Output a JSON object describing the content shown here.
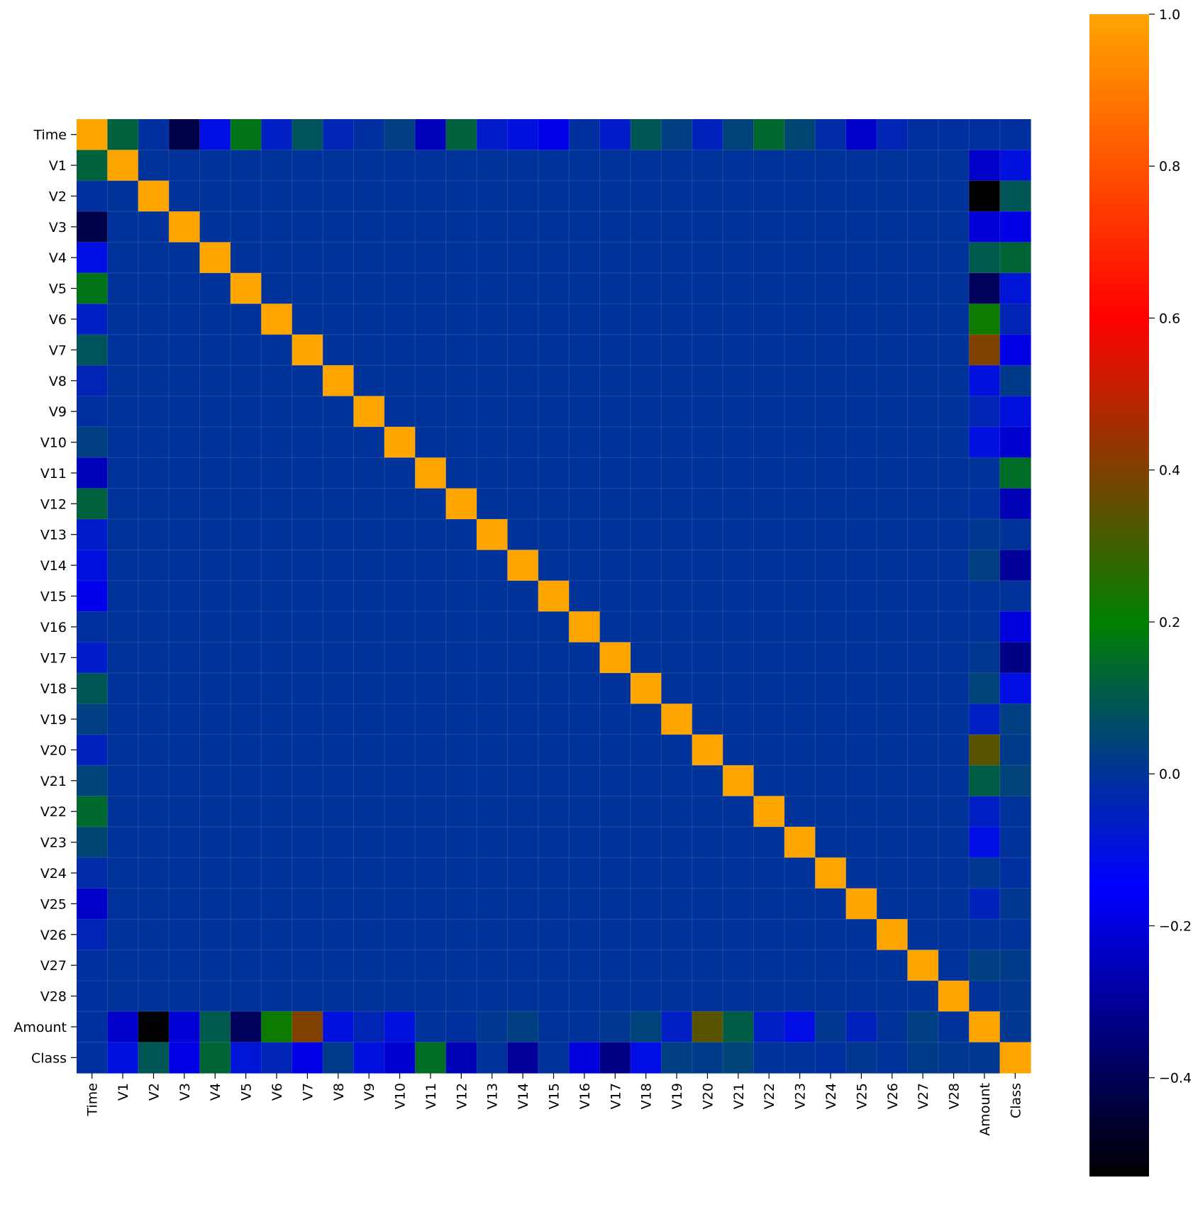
{
  "chart_data": {
    "type": "heatmap",
    "title": "",
    "xlabel": "",
    "ylabel": "",
    "labels": [
      "Time",
      "V1",
      "V2",
      "V3",
      "V4",
      "V5",
      "V6",
      "V7",
      "V8",
      "V9",
      "V10",
      "V11",
      "V12",
      "V13",
      "V14",
      "V15",
      "V16",
      "V17",
      "V18",
      "V19",
      "V20",
      "V21",
      "V22",
      "V23",
      "V24",
      "V25",
      "V26",
      "V27",
      "V28",
      "Amount",
      "Class"
    ],
    "colorbar": {
      "range": [
        -0.53,
        1.0
      ],
      "tick_values": [
        1.0,
        0.8,
        0.6,
        0.4,
        0.2,
        0.0,
        -0.2,
        -0.4
      ],
      "tick_labels": [
        "1.0",
        "0.8",
        "0.6",
        "0.4",
        "0.2",
        "0.0",
        "−0.2",
        "−0.4"
      ],
      "colors": [
        "#000000",
        "#000099",
        "#0000ff",
        "#003399",
        "#008000",
        "#ff0000",
        "#ffa500"
      ],
      "color_stops": [
        -0.53,
        -0.3,
        -0.15,
        0.0,
        0.2,
        0.6,
        1.0
      ]
    },
    "matrix": [
      [
        1.0,
        0.12,
        -0.01,
        -0.42,
        -0.11,
        0.17,
        -0.06,
        0.08,
        -0.04,
        -0.01,
        0.03,
        -0.25,
        0.12,
        -0.07,
        -0.1,
        -0.18,
        -0.01,
        -0.07,
        0.09,
        0.03,
        -0.05,
        0.04,
        0.14,
        0.05,
        -0.02,
        -0.23,
        -0.04,
        -0.01,
        -0.01,
        -0.01,
        -0.01
      ],
      [
        0.12,
        1.0,
        0,
        0,
        0,
        0,
        0,
        0,
        0,
        0,
        0,
        0,
        0,
        0,
        0,
        0,
        0,
        0,
        0,
        0,
        0,
        0,
        0,
        0,
        0,
        0,
        0,
        0,
        0,
        -0.23,
        -0.1
      ],
      [
        -0.01,
        0,
        1.0,
        0,
        0,
        0,
        0,
        0,
        0,
        0,
        0,
        0,
        0,
        0,
        0,
        0,
        0,
        0,
        0,
        0,
        0,
        0,
        0,
        0,
        0,
        0,
        0,
        0,
        0,
        -0.53,
        0.09
      ],
      [
        -0.42,
        0,
        0,
        1.0,
        0,
        0,
        0,
        0,
        0,
        0,
        0,
        0,
        0,
        0,
        0,
        0,
        0,
        0,
        0,
        0,
        0,
        0,
        0,
        0,
        0,
        0,
        0,
        0,
        0,
        -0.21,
        -0.19
      ],
      [
        -0.11,
        0,
        0,
        0,
        1.0,
        0,
        0,
        0,
        0,
        0,
        0,
        0,
        0,
        0,
        0,
        0,
        0,
        0,
        0,
        0,
        0,
        0,
        0,
        0,
        0,
        0,
        0,
        0,
        0,
        0.1,
        0.13
      ],
      [
        0.17,
        0,
        0,
        0,
        0,
        1.0,
        0,
        0,
        0,
        0,
        0,
        0,
        0,
        0,
        0,
        0,
        0,
        0,
        0,
        0,
        0,
        0,
        0,
        0,
        0,
        0,
        0,
        0,
        0,
        -0.39,
        -0.09
      ],
      [
        -0.06,
        0,
        0,
        0,
        0,
        0,
        1.0,
        0,
        0,
        0,
        0,
        0,
        0,
        0,
        0,
        0,
        0,
        0,
        0,
        0,
        0,
        0,
        0,
        0,
        0,
        0,
        0,
        0,
        0,
        0.22,
        -0.04
      ],
      [
        0.08,
        0,
        0,
        0,
        0,
        0,
        0,
        1.0,
        0,
        0,
        0,
        0,
        0,
        0,
        0,
        0,
        0,
        0,
        0,
        0,
        0,
        0,
        0,
        0,
        0,
        0,
        0,
        0,
        0,
        0.4,
        -0.19
      ],
      [
        -0.04,
        0,
        0,
        0,
        0,
        0,
        0,
        0,
        1.0,
        0,
        0,
        0,
        0,
        0,
        0,
        0,
        0,
        0,
        0,
        0,
        0,
        0,
        0,
        0,
        0,
        0,
        0,
        0,
        0,
        -0.1,
        0.02
      ],
      [
        -0.01,
        0,
        0,
        0,
        0,
        0,
        0,
        0,
        0,
        1.0,
        0,
        0,
        0,
        0,
        0,
        0,
        0,
        0,
        0,
        0,
        0,
        0,
        0,
        0,
        0,
        0,
        0,
        0,
        0,
        -0.04,
        -0.1
      ],
      [
        0.03,
        0,
        0,
        0,
        0,
        0,
        0,
        0,
        0,
        0,
        1.0,
        0,
        0,
        0,
        0,
        0,
        0,
        0,
        0,
        0,
        0,
        0,
        0,
        0,
        0,
        0,
        0,
        0,
        0,
        -0.1,
        -0.22
      ],
      [
        -0.25,
        0,
        0,
        0,
        0,
        0,
        0,
        0,
        0,
        0,
        0,
        1.0,
        0,
        0,
        0,
        0,
        0,
        0,
        0,
        0,
        0,
        0,
        0,
        0,
        0,
        0,
        0,
        0,
        0,
        0.0,
        0.15
      ],
      [
        0.12,
        0,
        0,
        0,
        0,
        0,
        0,
        0,
        0,
        0,
        0,
        0,
        1.0,
        0,
        0,
        0,
        0,
        0,
        0,
        0,
        0,
        0,
        0,
        0,
        0,
        0,
        0,
        0,
        0,
        -0.01,
        -0.26
      ],
      [
        -0.07,
        0,
        0,
        0,
        0,
        0,
        0,
        0,
        0,
        0,
        0,
        0,
        0,
        1.0,
        0,
        0,
        0,
        0,
        0,
        0,
        0,
        0,
        0,
        0,
        0,
        0,
        0,
        0,
        0,
        0.01,
        -0.0
      ],
      [
        -0.1,
        0,
        0,
        0,
        0,
        0,
        0,
        0,
        0,
        0,
        0,
        0,
        0,
        0,
        1.0,
        0,
        0,
        0,
        0,
        0,
        0,
        0,
        0,
        0,
        0,
        0,
        0,
        0,
        0,
        0.03,
        -0.3
      ],
      [
        -0.18,
        0,
        0,
        0,
        0,
        0,
        0,
        0,
        0,
        0,
        0,
        0,
        0,
        0,
        0,
        1.0,
        0,
        0,
        0,
        0,
        0,
        0,
        0,
        0,
        0,
        0,
        0,
        0,
        0,
        -0.0,
        -0.0
      ],
      [
        -0.01,
        0,
        0,
        0,
        0,
        0,
        0,
        0,
        0,
        0,
        0,
        0,
        0,
        0,
        0,
        0,
        1.0,
        0,
        0,
        0,
        0,
        0,
        0,
        0,
        0,
        0,
        0,
        0,
        0,
        -0.0,
        -0.2
      ],
      [
        -0.07,
        0,
        0,
        0,
        0,
        0,
        0,
        0,
        0,
        0,
        0,
        0,
        0,
        0,
        0,
        0,
        0,
        1.0,
        0,
        0,
        0,
        0,
        0,
        0,
        0,
        0,
        0,
        0,
        0,
        0.01,
        -0.33
      ],
      [
        0.09,
        0,
        0,
        0,
        0,
        0,
        0,
        0,
        0,
        0,
        0,
        0,
        0,
        0,
        0,
        0,
        0,
        0,
        1.0,
        0,
        0,
        0,
        0,
        0,
        0,
        0,
        0,
        0,
        0,
        0.04,
        -0.11
      ],
      [
        0.03,
        0,
        0,
        0,
        0,
        0,
        0,
        0,
        0,
        0,
        0,
        0,
        0,
        0,
        0,
        0,
        0,
        0,
        0,
        1.0,
        0,
        0,
        0,
        0,
        0,
        0,
        0,
        0,
        0,
        -0.06,
        0.03
      ],
      [
        -0.05,
        0,
        0,
        0,
        0,
        0,
        0,
        0,
        0,
        0,
        0,
        0,
        0,
        0,
        0,
        0,
        0,
        0,
        0,
        0,
        1.0,
        0,
        0,
        0,
        0,
        0,
        0,
        0,
        0,
        0.34,
        0.02
      ],
      [
        0.04,
        0,
        0,
        0,
        0,
        0,
        0,
        0,
        0,
        0,
        0,
        0,
        0,
        0,
        0,
        0,
        0,
        0,
        0,
        0,
        0,
        1.0,
        0,
        0,
        0,
        0,
        0,
        0,
        0,
        0.11,
        0.04
      ],
      [
        0.14,
        0,
        0,
        0,
        0,
        0,
        0,
        0,
        0,
        0,
        0,
        0,
        0,
        0,
        0,
        0,
        0,
        0,
        0,
        0,
        0,
        0,
        1.0,
        0,
        0,
        0,
        0,
        0,
        0,
        -0.06,
        0.0
      ],
      [
        0.05,
        0,
        0,
        0,
        0,
        0,
        0,
        0,
        0,
        0,
        0,
        0,
        0,
        0,
        0,
        0,
        0,
        0,
        0,
        0,
        0,
        0,
        0,
        1.0,
        0,
        0,
        0,
        0,
        0,
        -0.11,
        -0.0
      ],
      [
        -0.02,
        0,
        0,
        0,
        0,
        0,
        0,
        0,
        0,
        0,
        0,
        0,
        0,
        0,
        0,
        0,
        0,
        0,
        0,
        0,
        0,
        0,
        0,
        0,
        1.0,
        0,
        0,
        0,
        0,
        0.01,
        -0.01
      ],
      [
        -0.23,
        0,
        0,
        0,
        0,
        0,
        0,
        0,
        0,
        0,
        0,
        0,
        0,
        0,
        0,
        0,
        0,
        0,
        0,
        0,
        0,
        0,
        0,
        0,
        0,
        1.0,
        0,
        0,
        0,
        -0.05,
        0.01
      ],
      [
        -0.04,
        0,
        0,
        0,
        0,
        0,
        0,
        0,
        0,
        0,
        0,
        0,
        0,
        0,
        0,
        0,
        0,
        0,
        0,
        0,
        0,
        0,
        0,
        0,
        0,
        0,
        1.0,
        0,
        0,
        -0.0,
        0.0
      ],
      [
        -0.01,
        0,
        0,
        0,
        0,
        0,
        0,
        0,
        0,
        0,
        0,
        0,
        0,
        0,
        0,
        0,
        0,
        0,
        0,
        0,
        0,
        0,
        0,
        0,
        0,
        0,
        0,
        1.0,
        0,
        0.03,
        0.02
      ],
      [
        -0.01,
        0,
        0,
        0,
        0,
        0,
        0,
        0,
        0,
        0,
        0,
        0,
        0,
        0,
        0,
        0,
        0,
        0,
        0,
        0,
        0,
        0,
        0,
        0,
        0,
        0,
        0,
        0,
        1.0,
        -0.0,
        0.01
      ],
      [
        -0.01,
        -0.23,
        -0.53,
        -0.21,
        0.1,
        -0.39,
        0.22,
        0.4,
        -0.1,
        -0.04,
        -0.1,
        0.0,
        -0.01,
        0.01,
        0.03,
        -0.0,
        -0.0,
        0.01,
        0.04,
        -0.06,
        0.34,
        0.11,
        -0.06,
        -0.11,
        0.01,
        -0.05,
        -0.0,
        0.03,
        -0.0,
        1.0,
        0.01
      ],
      [
        -0.01,
        -0.1,
        0.09,
        -0.19,
        0.13,
        -0.09,
        -0.04,
        -0.19,
        0.02,
        -0.1,
        -0.22,
        0.15,
        -0.26,
        -0.0,
        -0.3,
        -0.0,
        -0.2,
        -0.33,
        -0.11,
        0.03,
        0.02,
        0.04,
        0.0,
        -0.0,
        -0.01,
        0.01,
        0.0,
        0.02,
        0.01,
        0.01,
        1.0
      ]
    ]
  }
}
